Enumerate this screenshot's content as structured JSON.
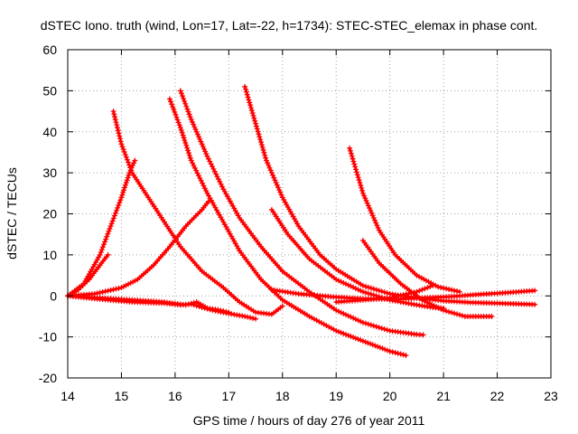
{
  "chart_data": {
    "type": "scatter",
    "title": "dSTEC Iono. truth (wind, Lon=17, Lat=-22, h=1734): STEC-STEC_elemax in phase cont.",
    "xlabel": "GPS time / hours of day 276 of year 2011",
    "ylabel": "dSTEC  / TECUs",
    "xlim": [
      14,
      23
    ],
    "ylim": [
      -20,
      60
    ],
    "xticks": [
      14,
      15,
      16,
      17,
      18,
      19,
      20,
      21,
      22,
      23
    ],
    "yticks": [
      -20,
      -10,
      0,
      10,
      20,
      30,
      40,
      50,
      60
    ],
    "grid": true,
    "marker": "plus",
    "series_color": "#ff0000",
    "series": [
      {
        "x": [
          14.0,
          14.2,
          14.4,
          14.6,
          14.75
        ],
        "y": [
          0,
          1.5,
          4,
          7.5,
          10
        ]
      },
      {
        "x": [
          14.0,
          14.3,
          14.6,
          14.8,
          15.0,
          15.15,
          15.25
        ],
        "y": [
          0,
          3,
          10,
          17,
          24,
          30,
          33
        ]
      },
      {
        "x": [
          14.0,
          14.5,
          15.0,
          15.3,
          15.6,
          15.9,
          16.2,
          16.5,
          16.62
        ],
        "y": [
          0,
          0.5,
          2,
          4,
          7.5,
          12,
          17,
          21,
          23
        ]
      },
      {
        "x": [
          14.0,
          14.6,
          15.2,
          15.8,
          16.1,
          16.3,
          16.5,
          16.7,
          17.0,
          17.3,
          17.5
        ],
        "y": [
          0,
          -0.8,
          -1.5,
          -1.8,
          -2.2,
          -2.0,
          -2.8,
          -3.5,
          -4.3,
          -5.0,
          -5.6
        ]
      },
      {
        "x": [
          14.0,
          14.6,
          15.2,
          15.8,
          16.2,
          16.4,
          16.6,
          16.8,
          17.0
        ],
        "y": [
          0,
          -0.5,
          -1,
          -1.5,
          -2.2,
          -1.5,
          -3.0,
          -3.4,
          -4.0
        ]
      },
      {
        "x": [
          14.85,
          15.0,
          15.2,
          15.5,
          15.8,
          16.1,
          16.5,
          16.9,
          17.2,
          17.5,
          17.8,
          18.0
        ],
        "y": [
          45,
          37,
          30,
          24,
          18,
          12,
          6,
          2,
          -1.5,
          -4,
          -4.5,
          -2.5
        ]
      },
      {
        "x": [
          15.9,
          16.1,
          16.3,
          16.6,
          16.9,
          17.2,
          17.6,
          18.0,
          18.5,
          19.0,
          19.5,
          20.0,
          20.3
        ],
        "y": [
          48,
          41,
          33,
          25,
          18,
          11,
          4,
          -1,
          -5,
          -8.5,
          -11,
          -13.5,
          -14.5
        ]
      },
      {
        "x": [
          16.1,
          16.3,
          16.6,
          16.9,
          17.2,
          17.6,
          18.0,
          18.5,
          19.0,
          19.5,
          20.0,
          20.5,
          20.62
        ],
        "y": [
          50,
          43,
          34,
          26,
          19,
          12,
          6,
          1,
          -3.5,
          -6.5,
          -8.5,
          -9.4,
          -9.5
        ]
      },
      {
        "x": [
          17.3,
          17.5,
          17.7,
          18.0,
          18.3,
          18.7,
          19.0,
          19.5,
          20.0,
          20.5,
          21.0,
          21.5,
          22.0,
          22.5,
          22.7
        ],
        "y": [
          51,
          42,
          33,
          24,
          17,
          10,
          6.5,
          2.5,
          0.5,
          -0.5,
          -1.2,
          -1.6,
          -1.8,
          -2.0,
          -2.1
        ]
      },
      {
        "x": [
          17.8,
          18.1,
          18.5,
          19.0,
          19.5,
          20.0,
          20.5,
          20.8,
          21.0
        ],
        "y": [
          21,
          15,
          9,
          4,
          1,
          -1,
          -2.2,
          -2.8,
          -3.0
        ]
      },
      {
        "x": [
          17.8,
          18.3,
          18.9,
          19.5,
          20.1,
          20.6,
          21.1,
          21.6,
          22.2,
          22.7
        ],
        "y": [
          1.5,
          0.5,
          -0.2,
          -0.7,
          -0.8,
          -0.5,
          -0.2,
          0.3,
          0.8,
          1.3
        ]
      },
      {
        "x": [
          19.25,
          19.5,
          19.8,
          20.1,
          20.5,
          20.9,
          21.3
        ],
        "y": [
          36,
          25,
          16,
          10,
          5,
          2.2,
          1
        ]
      },
      {
        "x": [
          19.5,
          19.8,
          20.2,
          20.6,
          21.0,
          21.4,
          21.9
        ],
        "y": [
          13.5,
          8,
          3,
          -1,
          -3.5,
          -5,
          -5.0
        ]
      },
      {
        "x": [
          19.0,
          19.5,
          20.0,
          20.5,
          20.8
        ],
        "y": [
          -1.5,
          -1.0,
          -0.5,
          1.0,
          2.5
        ]
      }
    ]
  }
}
